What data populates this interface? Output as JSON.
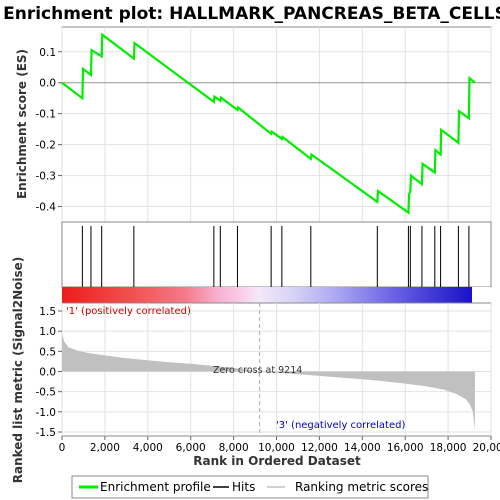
{
  "title": "Enrichment plot: HALLMARK_PANCREAS_BETA_CELLS",
  "chart_data": [
    {
      "type": "line",
      "name": "enrichment-profile",
      "ylabel": "Enrichment score (ES)",
      "xlim": [
        0,
        20000
      ],
      "ylim": [
        -0.45,
        0.18
      ],
      "yticks": [
        0.1,
        0.0,
        -0.1,
        -0.2,
        -0.3,
        -0.4
      ],
      "ytick_labels": [
        "0.1",
        "0.0",
        "-0.1",
        "-0.2",
        "-0.3",
        "-0.4"
      ],
      "grid": true,
      "series": [
        {
          "name": "Enrichment profile",
          "color": "#00ee00",
          "x": [
            0,
            950,
            980,
            1350,
            1380,
            1850,
            1880,
            3350,
            3380,
            7080,
            7110,
            7380,
            7410,
            8180,
            8210,
            9750,
            9780,
            10250,
            10280,
            11600,
            11630,
            14700,
            14730,
            16150,
            16180,
            16240,
            16270,
            16780,
            16810,
            17380,
            17410,
            17650,
            17680,
            18480,
            18510,
            18970,
            19000,
            19250
          ],
          "y": [
            0.0,
            -0.05,
            0.045,
            0.025,
            0.105,
            0.085,
            0.155,
            0.078,
            0.128,
            -0.062,
            -0.045,
            -0.058,
            -0.048,
            -0.088,
            -0.08,
            -0.165,
            -0.158,
            -0.182,
            -0.175,
            -0.246,
            -0.232,
            -0.385,
            -0.35,
            -0.42,
            -0.36,
            -0.352,
            -0.3,
            -0.328,
            -0.262,
            -0.29,
            -0.218,
            -0.232,
            -0.152,
            -0.194,
            -0.092,
            -0.115,
            0.015,
            0.0
          ]
        }
      ]
    },
    {
      "type": "hits",
      "name": "hits",
      "x": [
        950,
        1350,
        1850,
        3350,
        7080,
        7380,
        8180,
        9750,
        10250,
        11600,
        14700,
        16150,
        16240,
        16780,
        17380,
        17650,
        18480,
        18970
      ]
    },
    {
      "type": "area",
      "name": "ranked-list-metric",
      "ylabel": "Ranked list metric (Signal2Noise)",
      "xlabel": "Rank in Ordered Dataset",
      "xlim": [
        0,
        20000
      ],
      "ylim": [
        -1.5,
        1.5
      ],
      "xticks": [
        0,
        2000,
        4000,
        6000,
        8000,
        10000,
        12000,
        14000,
        16000,
        18000,
        20000
      ],
      "xtick_labels": [
        "0",
        "2,000",
        "4,000",
        "6,000",
        "8,000",
        "10,000",
        "12,000",
        "14,000",
        "16,000",
        "18,000",
        "20,000"
      ],
      "yticks": [
        1.5,
        1.0,
        0.5,
        0.0,
        -0.5,
        -1.0,
        -1.5
      ],
      "ytick_labels": [
        "1.5",
        "1.0",
        "0.5",
        "0.0",
        "-0.5",
        "-1.0",
        "-1.5"
      ],
      "x": [
        0,
        100,
        300,
        700,
        1200,
        2000,
        3000,
        4000,
        5000,
        6000,
        7000,
        8000,
        9214,
        10000,
        11000,
        12000,
        13000,
        14000,
        15000,
        16000,
        17000,
        17800,
        18400,
        18800,
        19000,
        19150,
        19250
      ],
      "y": [
        0.95,
        0.75,
        0.6,
        0.52,
        0.46,
        0.4,
        0.33,
        0.28,
        0.23,
        0.19,
        0.14,
        0.09,
        0.0,
        -0.03,
        -0.07,
        -0.11,
        -0.15,
        -0.19,
        -0.24,
        -0.3,
        -0.37,
        -0.45,
        -0.56,
        -0.68,
        -0.8,
        -1.0,
        -1.45
      ],
      "fill_color": "#c0c0c0",
      "zero_cross": 9214,
      "zero_cross_label": "Zero cross at 9214",
      "pos_label": "'1' (positively correlated)",
      "neg_label": "'3' (negatively correlated)"
    }
  ],
  "legend": {
    "items": [
      {
        "label": "Enrichment profile",
        "color": "#00ee00"
      },
      {
        "label": "Hits",
        "color": "#000000"
      },
      {
        "label": "Ranking metric scores",
        "color": "#c0c0c0"
      }
    ]
  },
  "colors": {
    "profile": "#00ee00",
    "pos_dark": "#ee2020",
    "neg_dark": "#1010cc"
  }
}
